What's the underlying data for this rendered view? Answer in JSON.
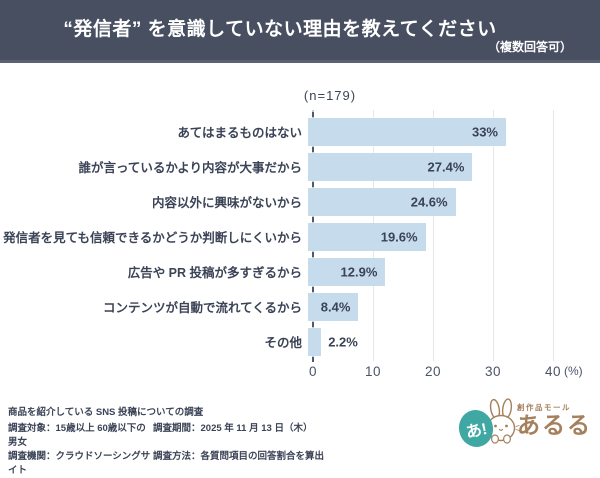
{
  "header": {
    "title": "“発信者” を意識していない理由を教えてください",
    "note": "（複数回答可）"
  },
  "chart_data": {
    "type": "bar",
    "orientation": "horizontal",
    "title": "“発信者” を意識していない理由を教えてください",
    "sample_label": "(n=179)",
    "categories": [
      "あてはまるものはない",
      "誰が言っているかより内容が大事だから",
      "内容以外に興味がないから",
      "発信者を見ても信頼できるかどうか判断しにくいから",
      "広告や PR 投稿が多すぎるから",
      "コンテンツが自動で流れてくるから",
      "その他"
    ],
    "values": [
      33,
      27.4,
      24.6,
      19.6,
      12.9,
      8.4,
      2.2
    ],
    "value_labels": [
      "33%",
      "27.4%",
      "24.6%",
      "19.6%",
      "12.9%",
      "8.4%",
      "2.2%"
    ],
    "xlim": [
      0,
      40
    ],
    "x_ticks": [
      0,
      10,
      20,
      30,
      40
    ],
    "x_unit": "(%)",
    "grid": true,
    "legend": false,
    "bar_color": "#c6dcec"
  },
  "footer": {
    "study_title": "商品を紹介している SNS 投稿についての調査",
    "rows": [
      {
        "left": "調査対象：15歳以上 60歳以下の男女",
        "right": "調査期間：2025 年 11 月 13 日（木）"
      },
      {
        "left": "調査機関：クラウドソーシングサイト",
        "right": "調査方法：各質問項目の回答割合を算出"
      }
    ]
  },
  "logo": {
    "service_type": "創作品モール",
    "brand": "あるる",
    "badge_text": "あ!"
  },
  "colors": {
    "header_bg": "#474f61",
    "bar": "#c6dcec",
    "text_dark": "#3b4356",
    "grid": "#e3e8ed",
    "logo_teal": "#3fa8a3",
    "logo_brown": "#a5805c"
  }
}
